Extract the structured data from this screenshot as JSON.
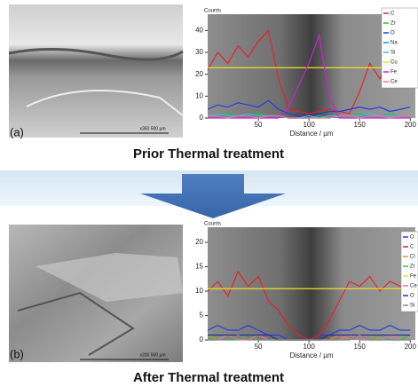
{
  "panels": [
    {
      "label": "(a)",
      "caption": "Prior Thermal treatment",
      "scale_text": "x350   500 µm",
      "chart": {
        "type": "line",
        "y_label": "Counts",
        "x_label": "Distance / µm",
        "xlim": [
          0,
          205
        ],
        "xticks": [
          50,
          100,
          150,
          200
        ],
        "ylim": [
          0,
          45
        ],
        "yticks": [
          0,
          10,
          20,
          30,
          40
        ],
        "x": [
          0,
          10,
          20,
          30,
          40,
          50,
          60,
          70,
          80,
          90,
          100,
          110,
          120,
          130,
          140,
          150,
          160,
          170,
          180,
          190,
          200
        ],
        "series": [
          {
            "name": "C",
            "color": "#e8202a",
            "values": [
              22,
              30,
              25,
              33,
              28,
              35,
              40,
              18,
              4,
              3,
              2,
              3,
              4,
              3,
              2,
              12,
              25,
              18,
              28,
              20,
              22
            ]
          },
          {
            "name": "Zr",
            "color": "#2fbf3a",
            "values": [
              1,
              1,
              2,
              1,
              1,
              2,
              1,
              1,
              0,
              0,
              0,
              1,
              0,
              1,
              1,
              2,
              1,
              1,
              2,
              1,
              1
            ]
          },
          {
            "name": "O",
            "color": "#1e3fe0",
            "values": [
              4,
              6,
              5,
              7,
              6,
              5,
              8,
              4,
              2,
              1,
              1,
              2,
              3,
              3,
              4,
              5,
              4,
              5,
              3,
              4,
              5
            ]
          },
          {
            "name": "Na",
            "color": "#1a9a9a",
            "values": [
              1,
              1,
              1,
              1,
              1,
              1,
              1,
              1,
              0,
              0,
              0,
              0,
              1,
              1,
              1,
              1,
              1,
              1,
              1,
              1,
              1
            ]
          },
          {
            "name": "Si",
            "color": "#30c0e0",
            "values": [
              1,
              2,
              1,
              1,
              2,
              1,
              1,
              1,
              0,
              0,
              1,
              0,
              1,
              1,
              1,
              1,
              2,
              1,
              1,
              1,
              1
            ]
          },
          {
            "name": "Cu",
            "color": "#f0e020",
            "values": [
              23,
              23,
              23,
              23,
              23,
              23,
              23,
              23,
              23,
              23,
              23,
              23,
              23,
              23,
              23,
              23,
              23,
              23,
              23,
              23,
              23
            ]
          },
          {
            "name": "Fe",
            "color": "#d020d8",
            "values": [
              0,
              0,
              0,
              0,
              0,
              0,
              0,
              0,
              5,
              15,
              25,
              38,
              10,
              0,
              0,
              0,
              0,
              0,
              0,
              0,
              0
            ]
          },
          {
            "name": "Ce",
            "color": "#f070b0",
            "values": [
              1,
              1,
              0,
              1,
              1,
              0,
              1,
              1,
              0,
              0,
              0,
              0,
              0,
              1,
              1,
              0,
              1,
              1,
              0,
              1,
              1
            ]
          }
        ]
      }
    },
    {
      "label": "(b)",
      "caption": "After Thermal treatment",
      "scale_text": "x200   500 µm",
      "chart": {
        "type": "line",
        "y_label": "Counts",
        "x_label": "Distance / µm",
        "xlim": [
          0,
          205
        ],
        "xticks": [
          50,
          100,
          150,
          200
        ],
        "ylim": [
          0,
          22
        ],
        "yticks": [
          0,
          5,
          10,
          15,
          20
        ],
        "x": [
          0,
          10,
          20,
          30,
          40,
          50,
          60,
          70,
          80,
          90,
          100,
          110,
          120,
          130,
          140,
          150,
          160,
          170,
          180,
          190,
          200
        ],
        "series": [
          {
            "name": "O",
            "color": "#1e3fe0",
            "values": [
              2,
              3,
              2,
              2,
              3,
              2,
              1,
              1,
              0,
              0,
              0,
              1,
              1,
              2,
              2,
              3,
              2,
              2,
              3,
              2,
              2
            ]
          },
          {
            "name": "C",
            "color": "#e8202a",
            "values": [
              10,
              12,
              9,
              14,
              11,
              13,
              8,
              6,
              3,
              1,
              0,
              1,
              4,
              8,
              12,
              11,
              13,
              10,
              12,
              11,
              10
            ]
          },
          {
            "name": "Cl",
            "color": "#f08a20",
            "values": [
              1,
              0,
              1,
              1,
              0,
              1,
              0,
              0,
              0,
              0,
              0,
              0,
              0,
              1,
              0,
              1,
              1,
              0,
              1,
              0,
              1
            ]
          },
          {
            "name": "Zr",
            "color": "#2fbf3a",
            "values": [
              0,
              1,
              0,
              0,
              1,
              0,
              0,
              0,
              0,
              0,
              0,
              0,
              0,
              0,
              1,
              0,
              0,
              1,
              0,
              0,
              1
            ]
          },
          {
            "name": "Fe",
            "color": "#f0e020",
            "values": [
              10.5,
              10.5,
              10.5,
              10.5,
              10.5,
              10.5,
              10.5,
              10.5,
              10.5,
              10.5,
              10.5,
              10.5,
              10.5,
              10.5,
              10.5,
              10.5,
              10.5,
              10.5,
              10.5,
              10.5,
              10.5
            ]
          },
          {
            "name": "Ce",
            "color": "#f070b0",
            "values": [
              0,
              0,
              1,
              0,
              0,
              1,
              0,
              0,
              0,
              0,
              0,
              0,
              0,
              0,
              1,
              0,
              0,
              0,
              1,
              0,
              0
            ]
          },
          {
            "name": "O",
            "color": "#22309a",
            "values": [
              1,
              1,
              1,
              1,
              1,
              1,
              1,
              0,
              0,
              0,
              0,
              0,
              1,
              1,
              1,
              1,
              1,
              1,
              1,
              1,
              1
            ]
          },
          {
            "name": "Si",
            "color": "#808890",
            "values": [
              0,
              0,
              0,
              1,
              0,
              0,
              0,
              0,
              0,
              0,
              0,
              0,
              0,
              0,
              0,
              1,
              0,
              0,
              0,
              0,
              0
            ]
          }
        ]
      }
    }
  ]
}
